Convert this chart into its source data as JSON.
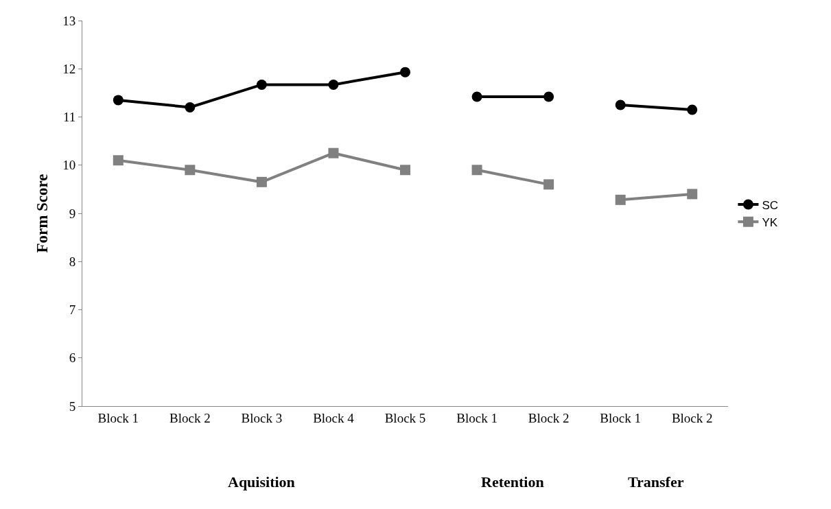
{
  "chart_data": {
    "type": "line",
    "ylabel": "Form Score",
    "categories": [
      "Block 1",
      "Block 2",
      "Block 3",
      "Block 4",
      "Block 5",
      "Block 1",
      "Block 2",
      "Block 1",
      "Block 2"
    ],
    "series": [
      {
        "name": "SC",
        "color": "#000000",
        "marker": "circle",
        "values": [
          11.35,
          11.2,
          11.67,
          11.67,
          11.93,
          null,
          null,
          null,
          null
        ]
      },
      {
        "color": "#000000",
        "marker": "circle",
        "values": [
          null,
          null,
          null,
          null,
          null,
          11.42,
          11.42,
          null,
          null
        ]
      },
      {
        "color": "#000000",
        "marker": "circle",
        "values": [
          null,
          null,
          null,
          null,
          null,
          null,
          null,
          11.25,
          11.15
        ]
      },
      {
        "name": "YK",
        "color": "#808080",
        "marker": "square",
        "values": [
          10.1,
          9.9,
          9.65,
          10.25,
          9.9,
          null,
          null,
          null,
          null
        ]
      },
      {
        "color": "#808080",
        "marker": "square",
        "values": [
          null,
          null,
          null,
          null,
          null,
          9.9,
          9.6,
          null,
          null
        ]
      },
      {
        "color": "#808080",
        "marker": "square",
        "values": [
          null,
          null,
          null,
          null,
          null,
          null,
          null,
          9.28,
          9.4
        ]
      }
    ],
    "annotations": [
      "Aquisition",
      "Retention",
      "Transfer"
    ],
    "ylim": [
      5,
      13
    ],
    "yticks": [
      5,
      6,
      7,
      8,
      9,
      10,
      11,
      12,
      13
    ],
    "legend": "right",
    "line_style": "solid"
  }
}
